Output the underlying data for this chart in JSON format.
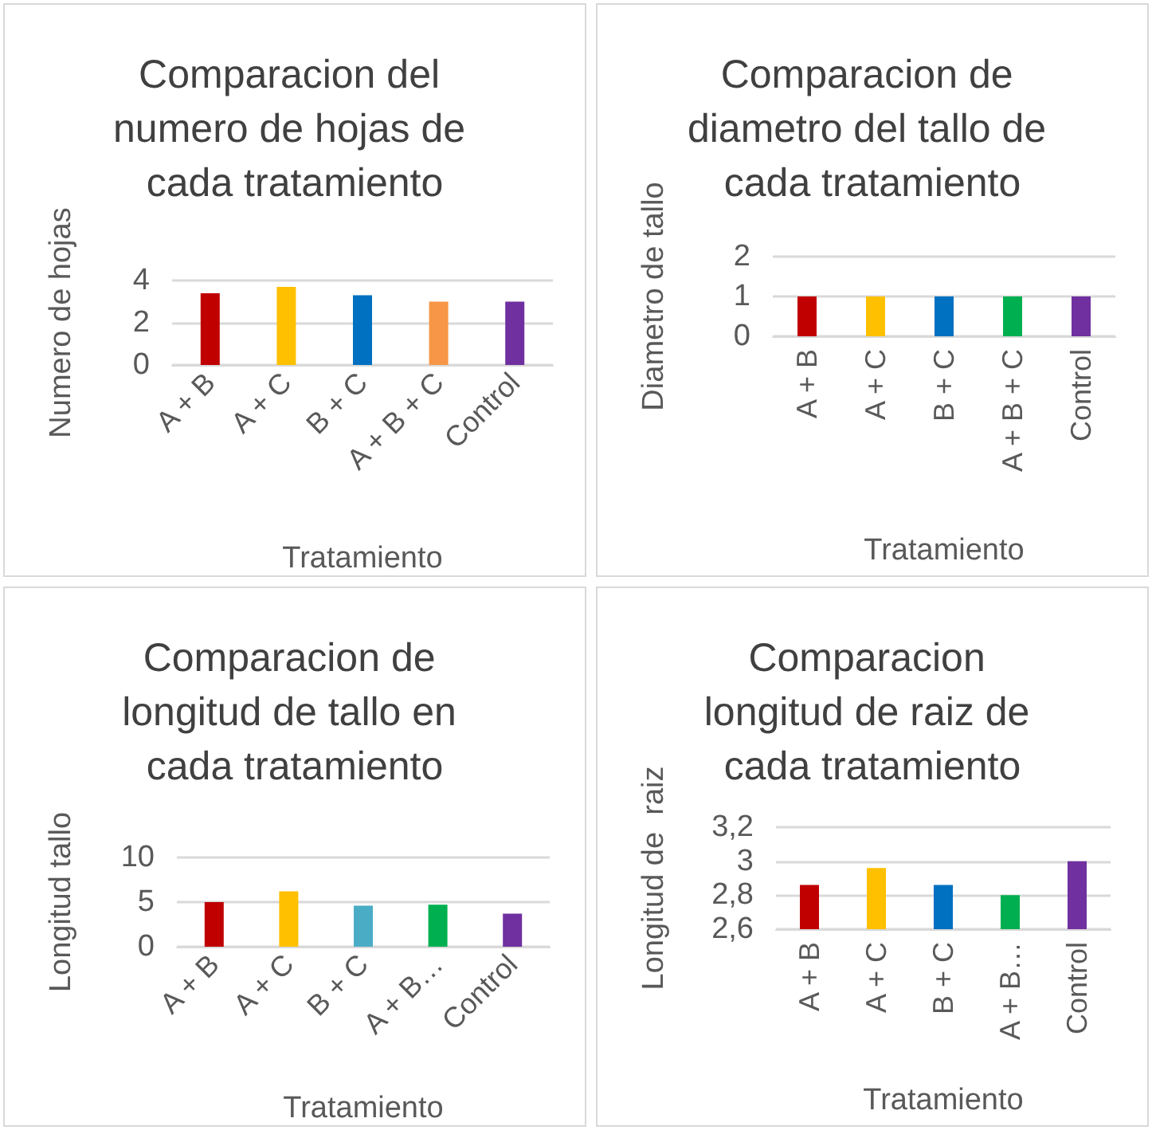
{
  "chart_data": [
    {
      "type": "bar",
      "title": "Comparacion del numero de hojas de cada tratamiento",
      "xlabel": "Tratamiento",
      "ylabel": "Numero de hojas",
      "categories": [
        "A + B",
        "A + C",
        "B + C",
        "A + B + C",
        "Control"
      ],
      "values": [
        3.4,
        3.7,
        3.3,
        3.0,
        3.0
      ],
      "colors": [
        "#c00000",
        "#ffc000",
        "#0070c0",
        "#f79646",
        "#7030a0"
      ],
      "ylim": [
        0,
        4
      ],
      "yticks": [
        0,
        2,
        4
      ],
      "grid": "y"
    },
    {
      "type": "bar",
      "title": "Comparacion de diametro del tallo de cada tratamiento",
      "xlabel": "Tratamiento",
      "ylabel": "Diametro de tallo",
      "categories": [
        "A + B",
        "A + C",
        "B + C",
        "A + B + C",
        "Control"
      ],
      "values": [
        1,
        1,
        1,
        1,
        1
      ],
      "colors": [
        "#c00000",
        "#ffc000",
        "#0070c0",
        "#00b050",
        "#7030a0"
      ],
      "ylim": [
        0,
        2
      ],
      "yticks": [
        0,
        1,
        2
      ],
      "grid": "y"
    },
    {
      "type": "bar",
      "title": "Comparacion de longitud de tallo en cada tratamiento",
      "xlabel": "Tratamiento",
      "ylabel": "Longitud tallo",
      "categories": [
        "A + B",
        "A + C",
        "B + C",
        "A + B…",
        "Control"
      ],
      "values": [
        5.0,
        6.2,
        4.6,
        4.7,
        3.7
      ],
      "colors": [
        "#c00000",
        "#ffc000",
        "#4bacc6",
        "#00b050",
        "#7030a0"
      ],
      "ylim": [
        0,
        10
      ],
      "yticks": [
        0,
        5,
        10
      ],
      "grid": "y"
    },
    {
      "type": "bar",
      "title": "Comparacion longitud de raiz de cada tratamiento",
      "xlabel": "Tratamiento",
      "ylabel": "Longitud de  raiz",
      "categories": [
        "A + B",
        "A + C",
        "B + C",
        "A + B…",
        "Control"
      ],
      "values": [
        2.86,
        2.96,
        2.86,
        2.8,
        3.0
      ],
      "colors": [
        "#c00000",
        "#ffc000",
        "#0070c0",
        "#00b050",
        "#7030a0"
      ],
      "ylim": [
        2.6,
        3.2
      ],
      "yticks": [
        {
          "value": 2.6,
          "label": "2,6"
        },
        {
          "value": 2.8,
          "label": "2,8"
        },
        3,
        {
          "value": 3.2,
          "label": "3,2"
        }
      ],
      "grid": "y"
    }
  ]
}
